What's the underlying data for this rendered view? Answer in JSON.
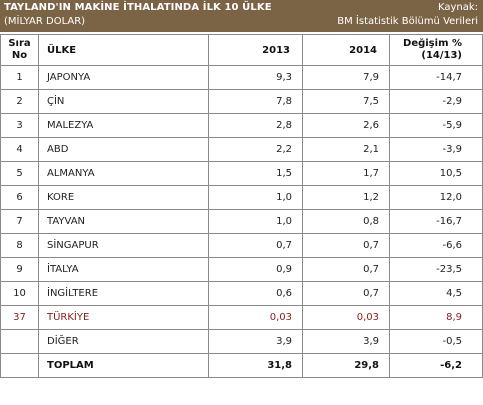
{
  "header": {
    "title": "TAYLAND'IN MAKİNE İTHALATINDA İLK 10 ÜLKE",
    "subtitle": "(MİLYAR DOLAR)",
    "source_label": "Kaynak:",
    "source": "BM İstatistik Bölümü Verileri"
  },
  "columns": {
    "rank_line1": "Sıra",
    "rank_line2": "No",
    "country": "ÜLKE",
    "y2013": "2013",
    "y2014": "2014",
    "change_line1": "Değişim %",
    "change_line2": "(14/13)"
  },
  "rows": [
    {
      "rank": "1",
      "country": "JAPONYA",
      "y2013": "9,3",
      "y2014": "7,9",
      "change": "-14,7"
    },
    {
      "rank": "2",
      "country": "ÇİN",
      "y2013": "7,8",
      "y2014": "7,5",
      "change": "-2,9"
    },
    {
      "rank": "3",
      "country": "MALEZYA",
      "y2013": "2,8",
      "y2014": "2,6",
      "change": "-5,9"
    },
    {
      "rank": "4",
      "country": "ABD",
      "y2013": "2,2",
      "y2014": "2,1",
      "change": "-3,9"
    },
    {
      "rank": "5",
      "country": "ALMANYA",
      "y2013": "1,5",
      "y2014": "1,7",
      "change": "10,5"
    },
    {
      "rank": "6",
      "country": "KORE",
      "y2013": "1,0",
      "y2014": "1,2",
      "change": "12,0"
    },
    {
      "rank": "7",
      "country": "TAYVAN",
      "y2013": "1,0",
      "y2014": "0,8",
      "change": "-16,7"
    },
    {
      "rank": "8",
      "country": "SİNGAPUR",
      "y2013": "0,7",
      "y2014": "0,7",
      "change": "-6,6"
    },
    {
      "rank": "9",
      "country": "İTALYA",
      "y2013": "0,9",
      "y2014": "0,7",
      "change": "-23,5"
    },
    {
      "rank": "10",
      "country": "İNGİLTERE",
      "y2013": "0,6",
      "y2014": "0,7",
      "change": "4,5"
    },
    {
      "rank": "37",
      "country": "TÜRKİYE",
      "y2013": "0,03",
      "y2014": "0,03",
      "change": "8,9"
    },
    {
      "rank": "",
      "country": "DİĞER",
      "y2013": "3,9",
      "y2014": "3,9",
      "change": "-0,5"
    },
    {
      "rank": "",
      "country": "TOPLAM",
      "y2013": "31,8",
      "y2014": "29,8",
      "change": "-6,2"
    }
  ],
  "colors": {
    "header_bg": "#7b6446",
    "highlight_text": "#8b1c1c"
  }
}
